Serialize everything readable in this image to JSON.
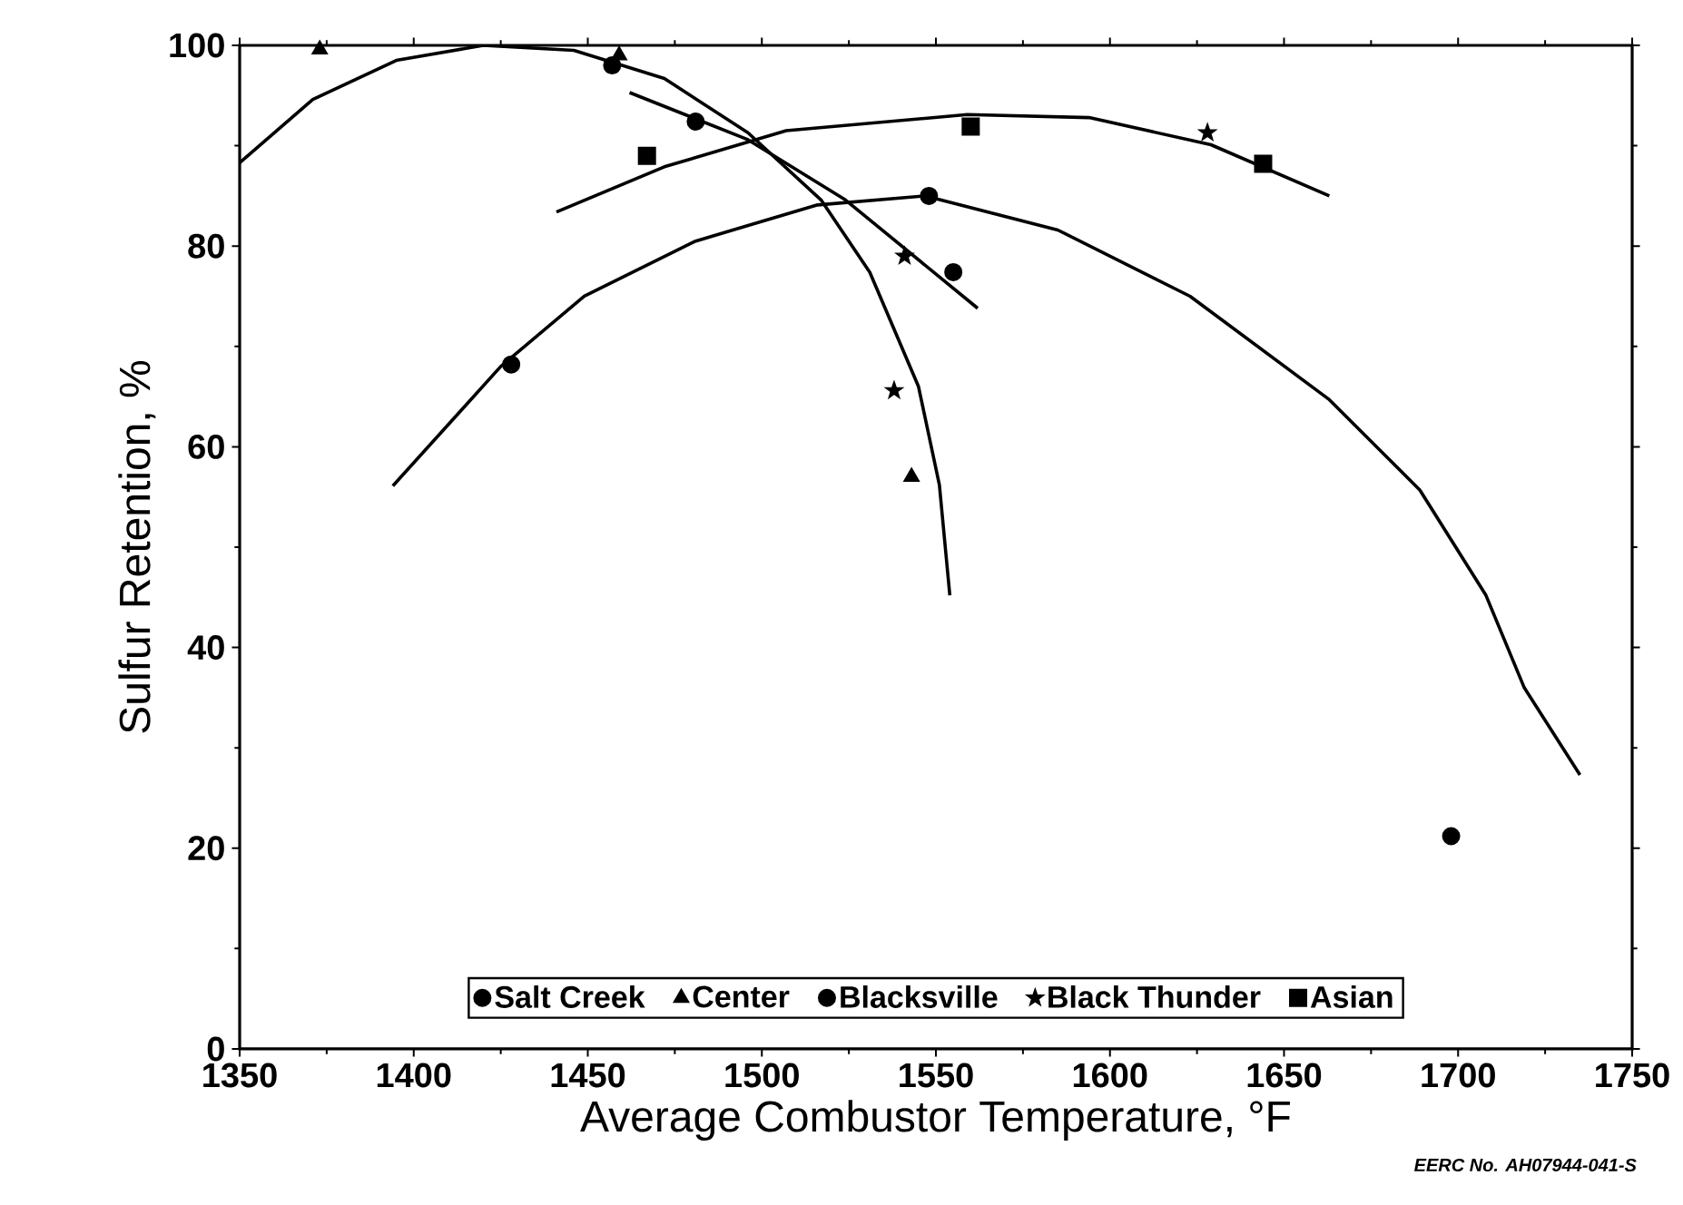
{
  "chart_data": {
    "type": "scatter",
    "xlabel": "Average Combustor Temperature, °F",
    "ylabel": "Sulfur Retention, %",
    "xlim": [
      1350,
      1750
    ],
    "xticks": [
      1350,
      1400,
      1450,
      1500,
      1550,
      1600,
      1650,
      1700,
      1750
    ],
    "ylim": [
      0,
      100
    ],
    "yticks": [
      0,
      20,
      40,
      60,
      80,
      100
    ],
    "grid": false,
    "legend": "bottom",
    "annotations": [
      "EERC No. AH07944-041-S"
    ],
    "series": [
      {
        "name": "Salt Creek",
        "color": "#000000",
        "marker": "circle",
        "x": [
          1457,
          1481,
          1555
        ],
        "values": [
          98,
          92.4,
          77.4
        ]
      },
      {
        "name": "Center",
        "color": "#000000",
        "marker": "triangle",
        "x": [
          1373,
          1459,
          1543
        ],
        "values": [
          99.6,
          99,
          57
        ]
      },
      {
        "name": "Blacksville",
        "color": "#000000",
        "marker": "circle",
        "x": [
          1428,
          1548,
          1698
        ],
        "values": [
          68.2,
          85,
          21.2
        ]
      },
      {
        "name": "Black Thunder",
        "color": "#000000",
        "marker": "star",
        "x": [
          1541,
          1538,
          1628
        ],
        "values": [
          79,
          65.6,
          91.3
        ]
      },
      {
        "name": "Asian",
        "color": "#000000",
        "marker": "square",
        "x": [
          1467,
          1560,
          1644
        ],
        "values": [
          89,
          91.9,
          88.2
        ]
      },
      {
        "type": "line",
        "color": "#000000",
        "marker": "none",
        "x": [
          1350,
          1371,
          1395,
          1420,
          1446,
          1472,
          1496,
          1517,
          1531,
          1545,
          1551,
          1554
        ],
        "values": [
          88.3,
          94.6,
          98.5,
          100,
          99.5,
          96.7,
          91.3,
          84.6,
          77.4,
          66,
          56.2,
          45.2
        ]
      },
      {
        "type": "line",
        "color": "#000000",
        "marker": "none",
        "x": [
          1462,
          1496,
          1524,
          1562
        ],
        "values": [
          95.3,
          90.6,
          84.6,
          73.8
        ]
      },
      {
        "type": "line",
        "color": "#000000",
        "marker": "none",
        "x": [
          1441,
          1472,
          1507,
          1559,
          1594,
          1629,
          1663
        ],
        "values": [
          83.4,
          87.9,
          91.5,
          93.1,
          92.8,
          90.1,
          85
        ]
      },
      {
        "type": "line",
        "color": "#000000",
        "marker": "none",
        "x": [
          1394,
          1425,
          1449,
          1481,
          1516,
          1547,
          1585,
          1623,
          1663,
          1689,
          1708,
          1719,
          1735
        ],
        "values": [
          56.1,
          68,
          75,
          80.5,
          84.1,
          85,
          81.6,
          75,
          64.7,
          55.7,
          45.2,
          36,
          27.3
        ]
      }
    ]
  }
}
